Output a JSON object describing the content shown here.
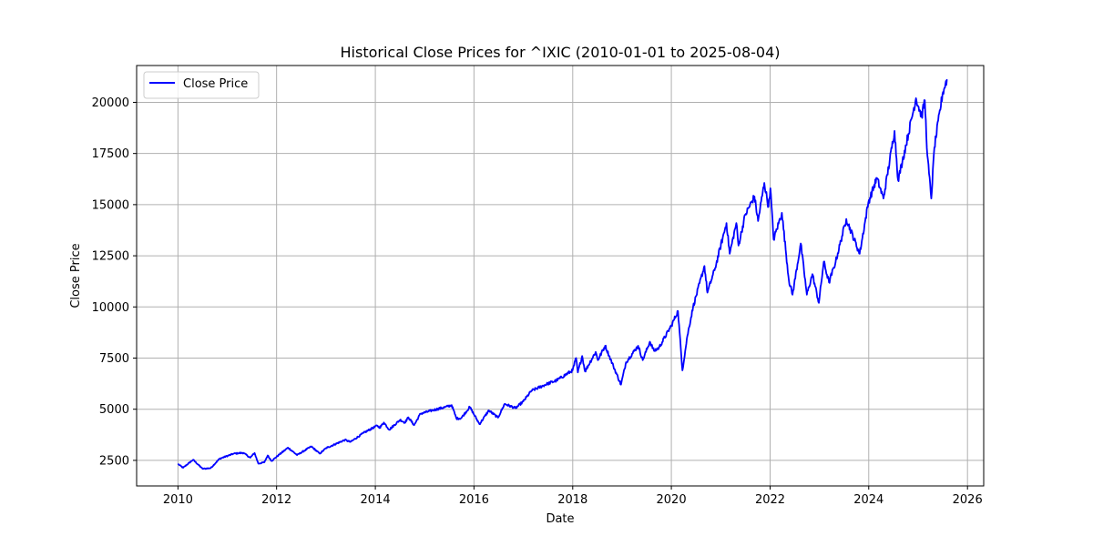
{
  "chart_data": {
    "type": "line",
    "title": "Historical Close Prices for ^IXIC (2010-01-01 to 2025-08-04)",
    "xlabel": "Date",
    "ylabel": "Close Price",
    "xlim": [
      "2009-03-01",
      "2026-05-01"
    ],
    "ylim": [
      1250,
      21800
    ],
    "xticks": [
      "2010",
      "2012",
      "2014",
      "2016",
      "2018",
      "2020",
      "2022",
      "2024",
      "2026"
    ],
    "yticks": [
      2500,
      5000,
      7500,
      10000,
      12500,
      15000,
      17500,
      20000
    ],
    "grid": true,
    "legend_position": "top-left",
    "series": [
      {
        "name": "Close Price",
        "color": "#0000ff",
        "x": [
          "2010-01-04",
          "2010-02-08",
          "2010-04-23",
          "2010-07-02",
          "2010-08-31",
          "2010-11-05",
          "2011-02-18",
          "2011-04-29",
          "2011-06-20",
          "2011-07-22",
          "2011-08-19",
          "2011-10-03",
          "2011-10-27",
          "2011-11-25",
          "2012-01-20",
          "2012-03-26",
          "2012-06-01",
          "2012-09-14",
          "2012-11-15",
          "2013-01-02",
          "2013-05-21",
          "2013-07-01",
          "2013-10-08",
          "2014-01-15",
          "2014-02-03",
          "2014-03-05",
          "2014-04-14",
          "2014-07-03",
          "2014-08-07",
          "2014-09-03",
          "2014-10-15",
          "2014-12-01",
          "2015-03-02",
          "2015-06-01",
          "2015-07-20",
          "2015-08-24",
          "2015-09-28",
          "2015-12-01",
          "2016-02-11",
          "2016-04-20",
          "2016-06-27",
          "2016-08-15",
          "2016-11-04",
          "2016-12-31",
          "2017-03-01",
          "2017-06-30",
          "2017-09-01",
          "2017-12-31",
          "2018-01-26",
          "2018-02-08",
          "2018-03-12",
          "2018-04-02",
          "2018-06-20",
          "2018-07-06",
          "2018-08-29",
          "2018-10-29",
          "2018-12-24",
          "2019-01-31",
          "2019-04-30",
          "2019-06-03",
          "2019-07-26",
          "2019-08-26",
          "2019-10-01",
          "2020-01-02",
          "2020-02-19",
          "2020-03-23",
          "2020-04-29",
          "2020-06-10",
          "2020-09-02",
          "2020-09-24",
          "2020-11-20",
          "2021-02-12",
          "2021-03-08",
          "2021-04-26",
          "2021-05-12",
          "2021-07-01",
          "2021-09-07",
          "2021-10-04",
          "2021-11-19",
          "2021-12-20",
          "2022-01-03",
          "2022-01-27",
          "2022-03-29",
          "2022-05-20",
          "2022-06-16",
          "2022-08-16",
          "2022-09-30",
          "2022-11-10",
          "2022-12-28",
          "2023-02-02",
          "2023-03-13",
          "2023-05-01",
          "2023-07-19",
          "2023-10-26",
          "2023-12-29",
          "2024-03-01",
          "2024-04-19",
          "2024-07-10",
          "2024-08-05",
          "2024-09-06",
          "2024-12-16",
          "2025-01-27",
          "2025-02-19",
          "2025-03-10",
          "2025-04-08",
          "2025-05-01",
          "2025-06-30",
          "2025-07-22",
          "2025-08-01"
        ],
        "values": [
          2308,
          2140,
          2530,
          2090,
          2120,
          2580,
          2830,
          2870,
          2630,
          2860,
          2340,
          2410,
          2740,
          2470,
          2780,
          3120,
          2760,
          3180,
          2830,
          3100,
          3500,
          3400,
          3850,
          4200,
          4100,
          4350,
          4000,
          4480,
          4350,
          4600,
          4220,
          4780,
          4950,
          5100,
          5200,
          4550,
          4560,
          5110,
          4270,
          4940,
          4590,
          5260,
          5050,
          5380,
          5900,
          6250,
          6400,
          6900,
          7500,
          6800,
          7600,
          6850,
          7800,
          7400,
          8100,
          7100,
          6200,
          7300,
          8100,
          7400,
          8300,
          7850,
          8000,
          9100,
          9800,
          6900,
          8600,
          10000,
          12000,
          10700,
          11900,
          14100,
          12600,
          14100,
          13000,
          14500,
          15400,
          14200,
          16060,
          14900,
          15800,
          13300,
          14600,
          11300,
          10600,
          13100,
          10600,
          11600,
          10200,
          12200,
          11200,
          12200,
          14300,
          12600,
          15100,
          16300,
          15300,
          18600,
          16200,
          17100,
          20200,
          19300,
          20100,
          17400,
          15300,
          17800,
          20400,
          20900,
          21100
        ]
      }
    ]
  }
}
